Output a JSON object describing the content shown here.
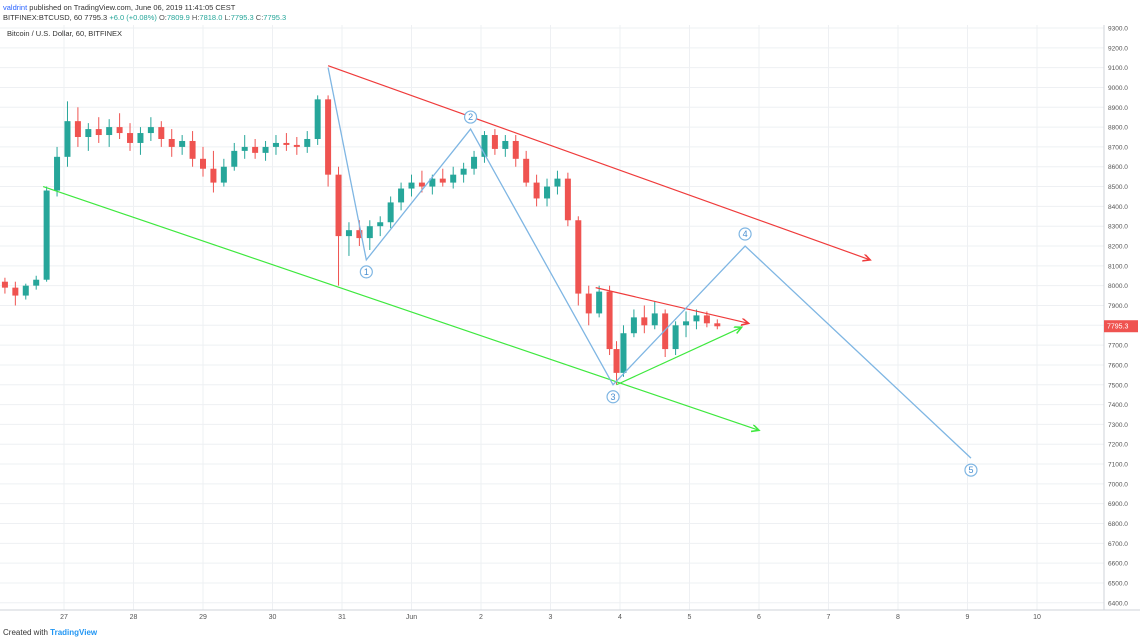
{
  "header": {
    "user": "valdrint",
    "published": "published on TradingView.com, June 06, 2019 11:41:05 CEST",
    "symbol": "BITFINEX:BTCUSD, 60",
    "last": "7795.3",
    "change": "+6.0 (+0.08%)",
    "o_label": "O:",
    "o_value": "7809.9",
    "h_label": "H:",
    "h_value": "7818.0",
    "l_label": "L:",
    "l_value": "7795.3",
    "c_label": "C:",
    "c_value": "7795.3",
    "title": "Bitcoin / U.S. Dollar, 60, BITFINEX"
  },
  "footer": {
    "created": "Created with",
    "brand": "TradingView"
  },
  "colors": {
    "up": "#26a69a",
    "down": "#ef5350",
    "trend_red": "#ef3b3b",
    "trend_green": "#3ee83e",
    "wave": "#7fb6e3",
    "price_tag": "#ef5350",
    "grid": "#eef0f3"
  },
  "chart_data": {
    "type": "candlestick",
    "ylim": [
      6400,
      9300
    ],
    "y_ticks": [
      "9300.0",
      "9200.0",
      "9100.0",
      "9000.0",
      "8900.0",
      "8800.0",
      "8700.0",
      "8600.0",
      "8500.0",
      "8400.0",
      "8300.0",
      "8200.0",
      "8100.0",
      "8000.0",
      "7900.0",
      "7800.0",
      "7700.0",
      "7600.0",
      "7500.0",
      "7400.0",
      "7300.0",
      "7200.0",
      "7100.0",
      "7000.0",
      "6900.0",
      "6800.0",
      "6700.0",
      "6600.0",
      "6500.0",
      "6400.0"
    ],
    "x_ticks": [
      "27",
      "28",
      "29",
      "30",
      "31",
      "Jun",
      "2",
      "3",
      "4",
      "5",
      "6",
      "7",
      "8",
      "9",
      "10"
    ],
    "last_price": "7795.3",
    "candles": [
      [
        26.0,
        8010,
        8060,
        7970,
        8020
      ],
      [
        26.15,
        8020,
        8040,
        7960,
        7990
      ],
      [
        26.3,
        7990,
        8020,
        7900,
        7950
      ],
      [
        26.45,
        7950,
        8010,
        7930,
        8000
      ],
      [
        26.6,
        8000,
        8050,
        7980,
        8030
      ],
      [
        26.75,
        8030,
        8500,
        8020,
        8480
      ],
      [
        26.9,
        8480,
        8700,
        8450,
        8650
      ],
      [
        27.05,
        8650,
        8930,
        8600,
        8830
      ],
      [
        27.2,
        8830,
        8900,
        8700,
        8750
      ],
      [
        27.35,
        8750,
        8820,
        8680,
        8790
      ],
      [
        27.5,
        8790,
        8850,
        8720,
        8760
      ],
      [
        27.65,
        8760,
        8840,
        8700,
        8800
      ],
      [
        27.8,
        8800,
        8870,
        8740,
        8770
      ],
      [
        27.95,
        8770,
        8820,
        8680,
        8720
      ],
      [
        28.1,
        8720,
        8800,
        8660,
        8770
      ],
      [
        28.25,
        8770,
        8850,
        8730,
        8800
      ],
      [
        28.4,
        8800,
        8830,
        8700,
        8740
      ],
      [
        28.55,
        8740,
        8790,
        8650,
        8700
      ],
      [
        28.7,
        8700,
        8760,
        8660,
        8730
      ],
      [
        28.85,
        8730,
        8780,
        8600,
        8640
      ],
      [
        29.0,
        8640,
        8700,
        8550,
        8590
      ],
      [
        29.15,
        8590,
        8680,
        8470,
        8520
      ],
      [
        29.3,
        8520,
        8640,
        8500,
        8600
      ],
      [
        29.45,
        8600,
        8720,
        8580,
        8680
      ],
      [
        29.6,
        8680,
        8760,
        8640,
        8700
      ],
      [
        29.75,
        8700,
        8740,
        8640,
        8670
      ],
      [
        29.9,
        8670,
        8730,
        8630,
        8700
      ],
      [
        30.05,
        8700,
        8760,
        8660,
        8720
      ],
      [
        30.2,
        8720,
        8770,
        8680,
        8710
      ],
      [
        30.35,
        8710,
        8750,
        8660,
        8700
      ],
      [
        30.5,
        8700,
        8780,
        8670,
        8740
      ],
      [
        30.65,
        8740,
        8960,
        8710,
        8940
      ],
      [
        30.8,
        8940,
        8960,
        8500,
        8560
      ],
      [
        30.95,
        8560,
        8600,
        8000,
        8250
      ],
      [
        31.1,
        8250,
        8320,
        8150,
        8280
      ],
      [
        31.25,
        8280,
        8330,
        8200,
        8240
      ],
      [
        31.4,
        8240,
        8330,
        8180,
        8300
      ],
      [
        31.55,
        8300,
        8350,
        8250,
        8320
      ],
      [
        31.7,
        8320,
        8450,
        8290,
        8420
      ],
      [
        31.85,
        8420,
        8520,
        8380,
        8490
      ],
      [
        32.0,
        8490,
        8560,
        8450,
        8520
      ],
      [
        32.15,
        8520,
        8580,
        8470,
        8500
      ],
      [
        32.3,
        8500,
        8560,
        8460,
        8540
      ],
      [
        32.45,
        8540,
        8590,
        8500,
        8520
      ],
      [
        32.6,
        8520,
        8600,
        8490,
        8560
      ],
      [
        32.75,
        8560,
        8620,
        8520,
        8590
      ],
      [
        32.9,
        8590,
        8680,
        8560,
        8650
      ],
      [
        33.05,
        8650,
        8780,
        8620,
        8760
      ],
      [
        33.2,
        8760,
        8790,
        8660,
        8690
      ],
      [
        33.35,
        8690,
        8760,
        8650,
        8730
      ],
      [
        33.5,
        8730,
        8760,
        8600,
        8640
      ],
      [
        33.65,
        8640,
        8680,
        8500,
        8520
      ],
      [
        33.8,
        8520,
        8560,
        8400,
        8440
      ],
      [
        33.95,
        8440,
        8540,
        8400,
        8500
      ],
      [
        34.1,
        8500,
        8580,
        8460,
        8540
      ],
      [
        34.25,
        8540,
        8570,
        8300,
        8330
      ],
      [
        34.4,
        8330,
        8350,
        7900,
        7960
      ],
      [
        34.55,
        7960,
        8000,
        7800,
        7860
      ],
      [
        34.7,
        7860,
        8000,
        7840,
        7970
      ],
      [
        34.85,
        7970,
        8000,
        7650,
        7680
      ],
      [
        34.95,
        7680,
        7720,
        7500,
        7560
      ],
      [
        35.05,
        7560,
        7800,
        7540,
        7760
      ],
      [
        35.2,
        7760,
        7880,
        7740,
        7840
      ],
      [
        35.35,
        7840,
        7900,
        7760,
        7800
      ],
      [
        35.5,
        7800,
        7920,
        7780,
        7860
      ],
      [
        35.65,
        7860,
        7880,
        7640,
        7680
      ],
      [
        35.8,
        7680,
        7820,
        7650,
        7800
      ],
      [
        35.95,
        7800,
        7870,
        7740,
        7820
      ],
      [
        36.1,
        7820,
        7880,
        7780,
        7850
      ],
      [
        36.25,
        7850,
        7870,
        7790,
        7810
      ],
      [
        36.4,
        7810,
        7830,
        7780,
        7795
      ]
    ],
    "overlays": {
      "wave_points": [
        [
          "",
          "30.8",
          "9100"
        ],
        [
          "1",
          "31.35",
          "8130"
        ],
        [
          "2",
          "32.85",
          "8790"
        ],
        [
          "3",
          "34.9",
          "7500"
        ],
        [
          "4",
          "36.8",
          "8200"
        ],
        [
          "5",
          "40.05",
          "7130"
        ]
      ],
      "wave_labels": [
        "1",
        "2",
        "3",
        "4",
        "5"
      ]
    }
  }
}
